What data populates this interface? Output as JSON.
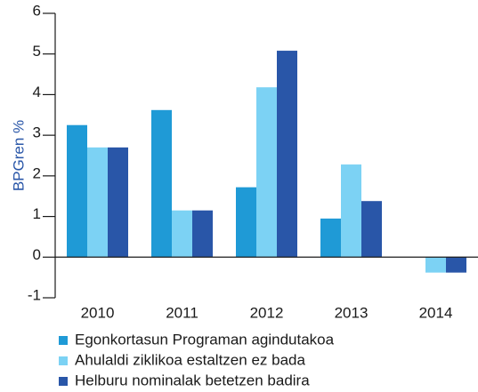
{
  "chart_data": {
    "type": "bar",
    "y_label": "BPGren %",
    "categories": [
      "2010",
      "2011",
      "2012",
      "2013",
      "2014"
    ],
    "series": [
      {
        "name": "Egonkortasun Programan agindutakoa",
        "color": "#1f9ad6",
        "values": [
          3.25,
          3.62,
          1.72,
          0.95,
          null
        ]
      },
      {
        "name": "Ahulaldi ziklikoa estaltzen ez bada",
        "color": "#7cd2f4",
        "values": [
          2.7,
          1.15,
          4.18,
          2.28,
          -0.38
        ]
      },
      {
        "name": "Helburu nominalak betetzen badira",
        "color": "#2956a8",
        "values": [
          2.7,
          1.15,
          5.08,
          1.38,
          -0.38
        ]
      }
    ],
    "ylim": [
      -1,
      6
    ],
    "yticks": [
      -1,
      0,
      1,
      2,
      3,
      4,
      5,
      6
    ],
    "legend": "bottom-left"
  }
}
